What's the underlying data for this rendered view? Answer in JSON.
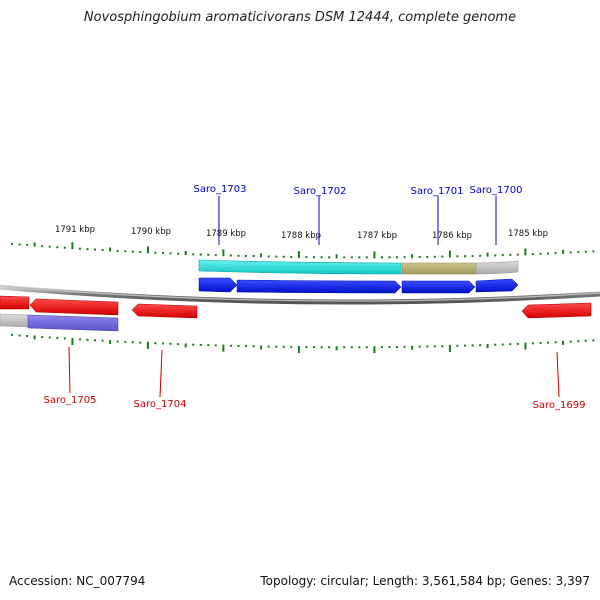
{
  "title": "Novosphingobium aromaticivorans DSM 12444, complete genome",
  "footer": {
    "accession": "Accession: NC_007794",
    "summary": "Topology: circular; Length: 3,561,584 bp; Genes: 3,397"
  },
  "scale_labels": [
    "1791 kbp",
    "1790 kbp",
    "1789 kbp",
    "1788 kbp",
    "1787 kbp",
    "1786 kbp",
    "1785 kbp"
  ],
  "gene_labels": {
    "forward": [
      "Saro_1703",
      "Saro_1702",
      "Saro_1701",
      "Saro_1700"
    ],
    "reverse": [
      "Saro_1705",
      "Saro_1704",
      "Saro_1699"
    ]
  },
  "colors": {
    "forward_label": "#0000cc",
    "reverse_label": "#cc0000",
    "forward_cds": "#0a1ee6",
    "reverse_cds": "#ee1111",
    "tick": "#1a7a1a",
    "backbone": "#888888",
    "feature_cyan": "#22dddd",
    "feature_olive": "#b3ad70",
    "feature_gray": "#c4c4c4",
    "feature_purple": "#7166d6"
  }
}
